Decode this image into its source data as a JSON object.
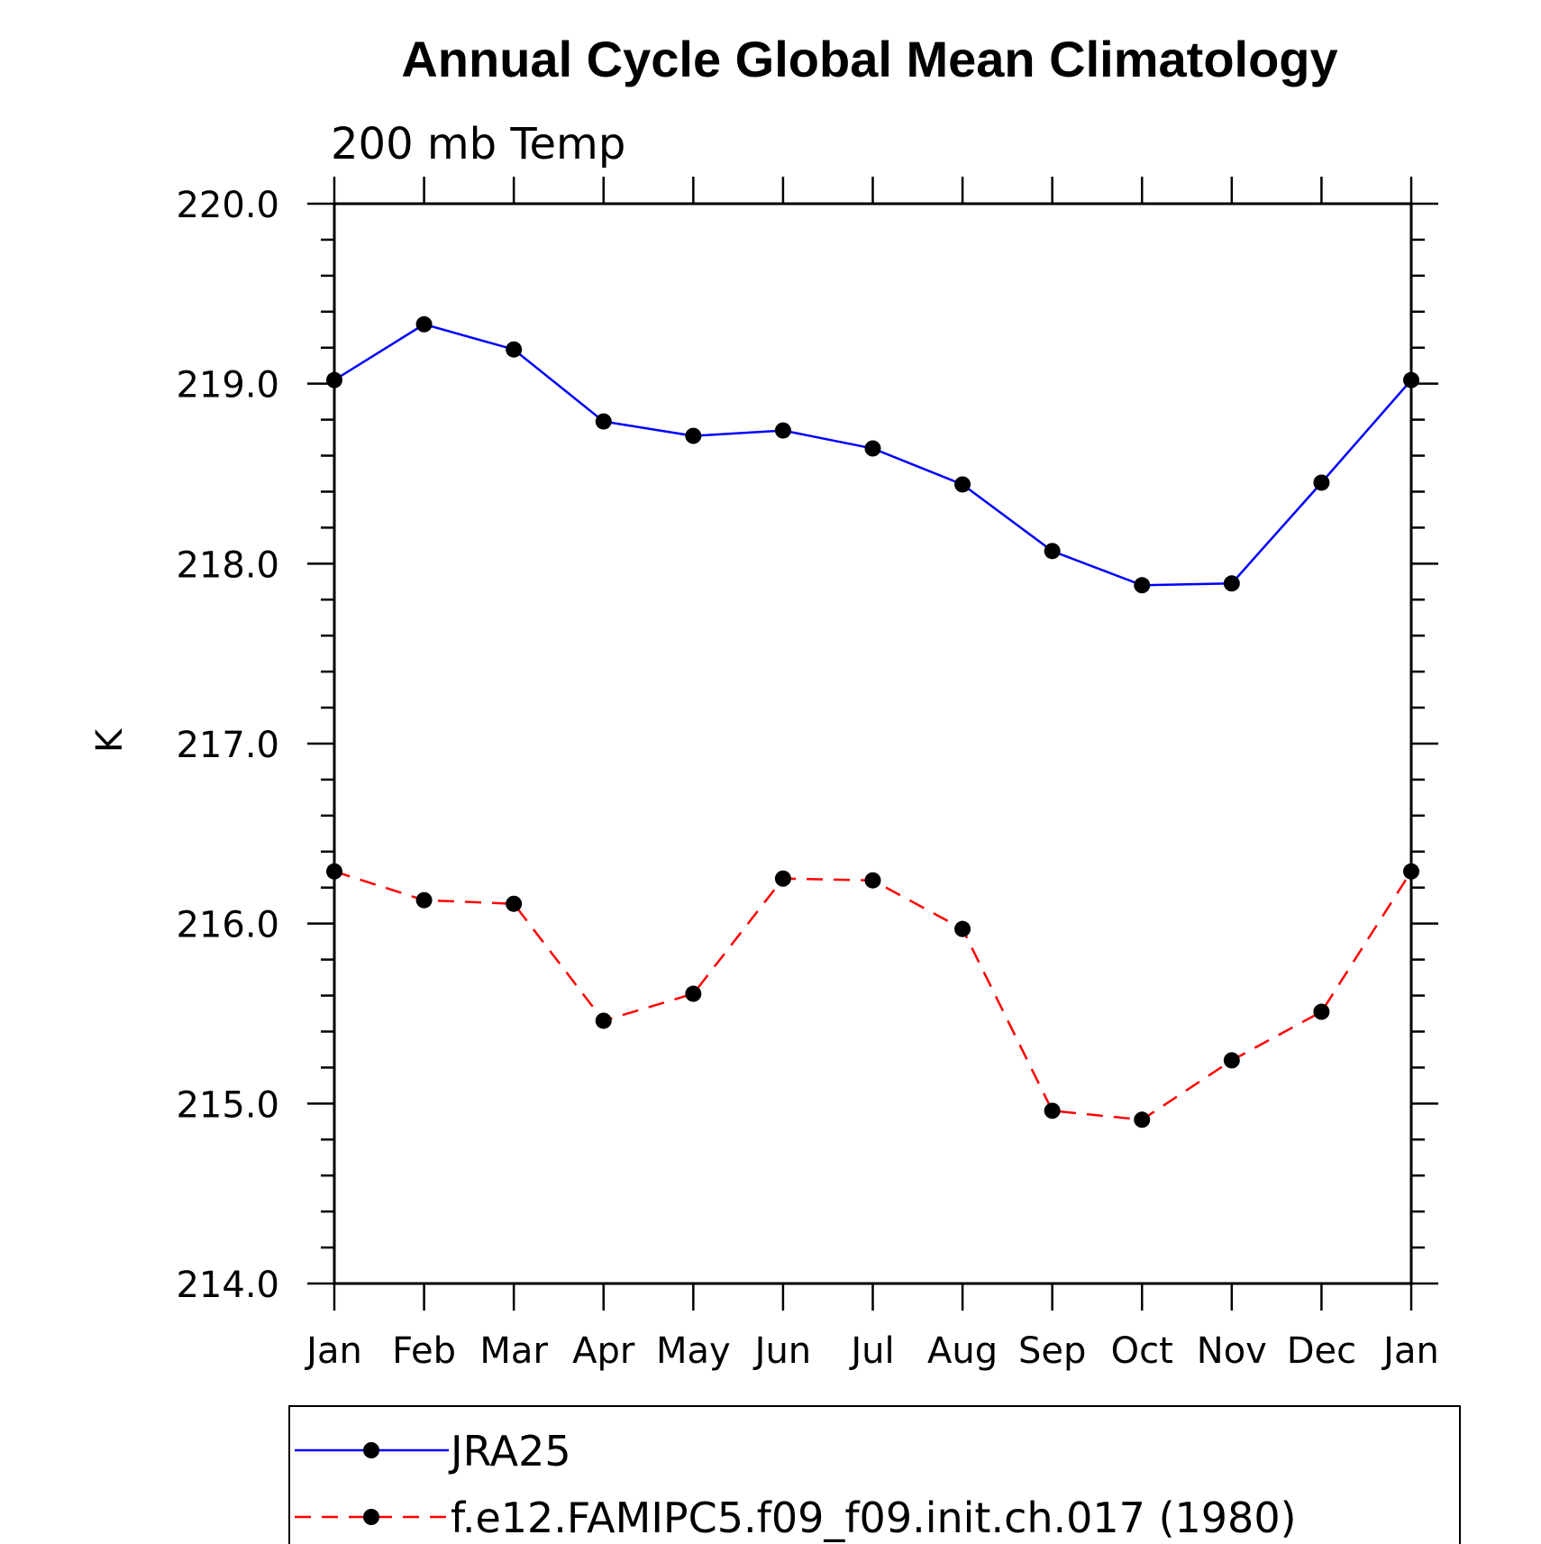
{
  "chart_data": {
    "type": "line",
    "title": "Annual Cycle Global Mean Climatology",
    "subtitle": "200 mb Temp",
    "ylabel": "K",
    "xlabel": "",
    "categories": [
      "Jan",
      "Feb",
      "Mar",
      "Apr",
      "May",
      "Jun",
      "Jul",
      "Aug",
      "Sep",
      "Oct",
      "Nov",
      "Dec",
      "Jan"
    ],
    "ylim": [
      214.0,
      220.0
    ],
    "yticks": [
      "214.0",
      "215.0",
      "216.0",
      "217.0",
      "218.0",
      "219.0",
      "220.0"
    ],
    "grid": false,
    "legend_position": "bottom",
    "series": [
      {
        "name": "JRA25",
        "color": "#0000ff",
        "line_style": "solid",
        "marker": "filled-circle",
        "values": [
          219.02,
          219.33,
          219.19,
          218.79,
          218.71,
          218.74,
          218.64,
          218.44,
          218.07,
          217.88,
          217.89,
          218.45,
          219.02
        ]
      },
      {
        "name": "f.e12.FAMIPC5.f09_f09.init.ch.017 (1980)",
        "color": "#ff0000",
        "line_style": "dashed",
        "marker": "filled-circle",
        "values": [
          216.29,
          216.13,
          216.11,
          215.46,
          215.61,
          216.25,
          216.24,
          215.97,
          214.96,
          214.91,
          215.24,
          215.51,
          216.29
        ]
      }
    ]
  }
}
